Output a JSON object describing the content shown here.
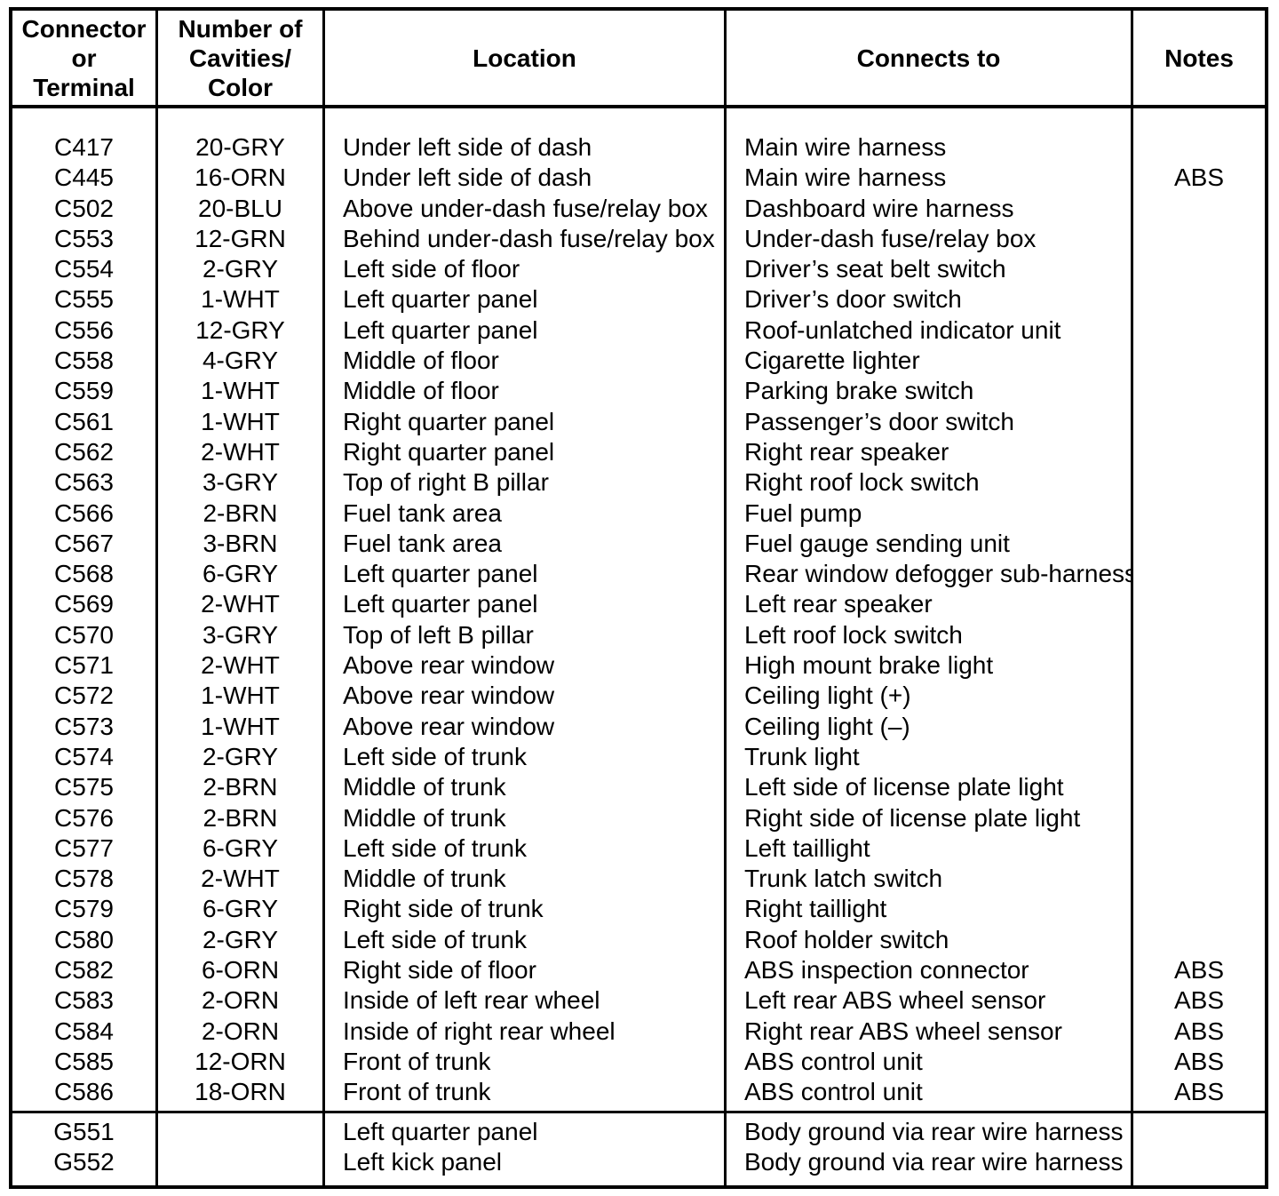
{
  "ink_color": "#000000",
  "paper_color": "#ffffff",
  "table": {
    "headers": {
      "connector": "Connector\nor\nTerminal",
      "cavities": "Number of\nCavities/\nColor",
      "location": "Location",
      "connects_to": "Connects to",
      "notes": "Notes"
    },
    "rows": [
      {
        "connector": "C417",
        "cavities": "20-GRY",
        "location": "Under left side of dash",
        "connects_to": "Main wire harness",
        "notes": ""
      },
      {
        "connector": "C445",
        "cavities": "16-ORN",
        "location": "Under left side of dash",
        "connects_to": "Main wire harness",
        "notes": "ABS"
      },
      {
        "connector": "C502",
        "cavities": "20-BLU",
        "location": "Above under-dash fuse/relay box",
        "connects_to": "Dashboard wire harness",
        "notes": ""
      },
      {
        "connector": "C553",
        "cavities": "12-GRN",
        "location": "Behind under-dash fuse/relay box",
        "connects_to": "Under-dash fuse/relay box",
        "notes": ""
      },
      {
        "connector": "C554",
        "cavities": "2-GRY",
        "location": "Left side of floor",
        "connects_to": "Driver’s seat belt switch",
        "notes": ""
      },
      {
        "connector": "C555",
        "cavities": "1-WHT",
        "location": "Left quarter panel",
        "connects_to": "Driver’s door switch",
        "notes": ""
      },
      {
        "connector": "C556",
        "cavities": "12-GRY",
        "location": "Left quarter panel",
        "connects_to": "Roof-unlatched indicator unit",
        "notes": ""
      },
      {
        "connector": "C558",
        "cavities": "4-GRY",
        "location": "Middle of floor",
        "connects_to": "Cigarette lighter",
        "notes": ""
      },
      {
        "connector": "C559",
        "cavities": "1-WHT",
        "location": "Middle of floor",
        "connects_to": "Parking brake switch",
        "notes": ""
      },
      {
        "connector": "C561",
        "cavities": "1-WHT",
        "location": "Right quarter panel",
        "connects_to": "Passenger’s door switch",
        "notes": ""
      },
      {
        "connector": "C562",
        "cavities": "2-WHT",
        "location": "Right quarter panel",
        "connects_to": "Right rear speaker",
        "notes": ""
      },
      {
        "connector": "C563",
        "cavities": "3-GRY",
        "location": "Top of right B pillar",
        "connects_to": "Right roof lock switch",
        "notes": ""
      },
      {
        "connector": "C566",
        "cavities": "2-BRN",
        "location": "Fuel tank area",
        "connects_to": "Fuel pump",
        "notes": ""
      },
      {
        "connector": "C567",
        "cavities": "3-BRN",
        "location": "Fuel tank area",
        "connects_to": "Fuel gauge sending unit",
        "notes": ""
      },
      {
        "connector": "C568",
        "cavities": "6-GRY",
        "location": "Left quarter panel",
        "connects_to": "Rear window defogger sub-harness",
        "notes": ""
      },
      {
        "connector": "C569",
        "cavities": "2-WHT",
        "location": "Left quarter panel",
        "connects_to": "Left rear speaker",
        "notes": ""
      },
      {
        "connector": "C570",
        "cavities": "3-GRY",
        "location": "Top of left B pillar",
        "connects_to": "Left roof lock switch",
        "notes": ""
      },
      {
        "connector": "C571",
        "cavities": "2-WHT",
        "location": "Above rear window",
        "connects_to": "High mount brake light",
        "notes": ""
      },
      {
        "connector": "C572",
        "cavities": "1-WHT",
        "location": "Above rear window",
        "connects_to": "Ceiling light (+)",
        "notes": ""
      },
      {
        "connector": "C573",
        "cavities": "1-WHT",
        "location": "Above rear window",
        "connects_to": "Ceiling light (–)",
        "notes": ""
      },
      {
        "connector": "C574",
        "cavities": "2-GRY",
        "location": "Left side of trunk",
        "connects_to": "Trunk light",
        "notes": ""
      },
      {
        "connector": "C575",
        "cavities": "2-BRN",
        "location": "Middle of trunk",
        "connects_to": "Left side of license plate light",
        "notes": ""
      },
      {
        "connector": "C576",
        "cavities": "2-BRN",
        "location": "Middle of trunk",
        "connects_to": "Right side of license plate light",
        "notes": ""
      },
      {
        "connector": "C577",
        "cavities": "6-GRY",
        "location": "Left side of trunk",
        "connects_to": "Left taillight",
        "notes": ""
      },
      {
        "connector": "C578",
        "cavities": "2-WHT",
        "location": "Middle of trunk",
        "connects_to": "Trunk latch switch",
        "notes": ""
      },
      {
        "connector": "C579",
        "cavities": "6-GRY",
        "location": "Right side of trunk",
        "connects_to": "Right taillight",
        "notes": ""
      },
      {
        "connector": "C580",
        "cavities": "2-GRY",
        "location": "Left side of trunk",
        "connects_to": "Roof holder switch",
        "notes": ""
      },
      {
        "connector": "C582",
        "cavities": "6-ORN",
        "location": "Right side of floor",
        "connects_to": "ABS inspection connector",
        "notes": "ABS"
      },
      {
        "connector": "C583",
        "cavities": "2-ORN",
        "location": "Inside of left rear wheel",
        "connects_to": "Left rear ABS wheel sensor",
        "notes": "ABS"
      },
      {
        "connector": "C584",
        "cavities": "2-ORN",
        "location": "Inside of right rear wheel",
        "connects_to": "Right rear ABS wheel sensor",
        "notes": "ABS"
      },
      {
        "connector": "C585",
        "cavities": "12-ORN",
        "location": "Front of trunk",
        "connects_to": "ABS control unit",
        "notes": "ABS"
      },
      {
        "connector": "C586",
        "cavities": "18-ORN",
        "location": "Front of trunk",
        "connects_to": "ABS control unit",
        "notes": "ABS"
      }
    ],
    "ground_rows": [
      {
        "connector": "G551",
        "cavities": "",
        "location": "Left quarter panel",
        "connects_to": "Body ground via rear wire harness",
        "notes": ""
      },
      {
        "connector": "G552",
        "cavities": "",
        "location": "Left kick panel",
        "connects_to": "Body ground via rear wire harness",
        "notes": ""
      }
    ]
  }
}
